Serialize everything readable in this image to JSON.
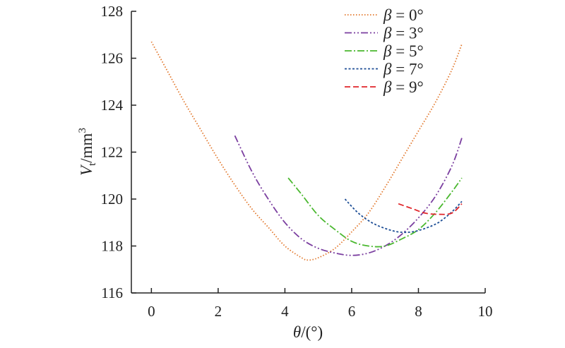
{
  "chart_data": {
    "type": "line",
    "title": "",
    "xlabel": "θ/(°)",
    "xlabel_var": "θ",
    "xlabel_unit": "/(°)",
    "ylabel": "Vt/mm3",
    "ylabel_var": "V",
    "ylabel_sub": "t",
    "ylabel_unit": "/mm",
    "ylabel_sup": "3",
    "xlim": [
      -0.6,
      10
    ],
    "ylim": [
      116,
      128
    ],
    "xticks": [
      0,
      2,
      4,
      6,
      8,
      10
    ],
    "yticks": [
      116,
      118,
      120,
      122,
      124,
      126,
      128
    ],
    "xtick_labels": [
      "0",
      "2",
      "4",
      "6",
      "8",
      "10"
    ],
    "ytick_labels": [
      "116",
      "118",
      "120",
      "122",
      "124",
      "126",
      "128"
    ],
    "grid": false,
    "legend_position": "top-right",
    "series": [
      {
        "name": "β = 0°",
        "legend_var": "β",
        "legend_rest": " = 0°",
        "color": "#e2772b",
        "dash": "1.5,2.5",
        "x": [
          0,
          0.5,
          1,
          1.5,
          2,
          2.5,
          3,
          3.5,
          4,
          4.5,
          4.7,
          5,
          5.5,
          6,
          6.5,
          7,
          7.5,
          8,
          8.5,
          9,
          9.3
        ],
        "y": [
          126.7,
          125.4,
          124.1,
          122.9,
          121.7,
          120.6,
          119.6,
          118.8,
          118.0,
          117.5,
          117.4,
          117.5,
          117.9,
          118.6,
          119.4,
          120.5,
          121.7,
          122.9,
          124.1,
          125.5,
          126.6
        ]
      },
      {
        "name": "β = 3°",
        "legend_var": "β",
        "legend_rest": " = 3°",
        "color": "#7b3fa0",
        "dash": "10,3,2,3,2,3",
        "x": [
          2.5,
          3,
          3.5,
          4,
          4.5,
          5,
          5.5,
          6,
          6.5,
          7,
          7.5,
          8,
          8.5,
          9,
          9.3
        ],
        "y": [
          122.7,
          121.2,
          120.0,
          119.0,
          118.3,
          117.9,
          117.7,
          117.6,
          117.7,
          118.0,
          118.5,
          119.2,
          120.1,
          121.4,
          122.6
        ]
      },
      {
        "name": "β = 5°",
        "legend_var": "β",
        "legend_rest": " = 5°",
        "color": "#4ab82f",
        "dash": "10,3,2,3",
        "x": [
          4.1,
          4.5,
          5,
          5.5,
          6,
          6.5,
          7,
          7.5,
          8,
          8.5,
          9,
          9.3
        ],
        "y": [
          120.9,
          120.2,
          119.3,
          118.7,
          118.2,
          118.0,
          118.0,
          118.3,
          118.7,
          119.4,
          120.3,
          120.9
        ]
      },
      {
        "name": "β = 7°",
        "legend_var": "β",
        "legend_rest": " = 7°",
        "color": "#1f4f96",
        "dash": "3,2.5",
        "x": [
          5.8,
          6.2,
          6.6,
          7,
          7.4,
          7.8,
          8.2,
          8.6,
          9,
          9.3
        ],
        "y": [
          120.0,
          119.4,
          119.0,
          118.75,
          118.6,
          118.6,
          118.75,
          119.0,
          119.45,
          119.9
        ]
      },
      {
        "name": "β = 9°",
        "legend_var": "β",
        "legend_rest": " = 9°",
        "color": "#e0262b",
        "dash": "8,4",
        "x": [
          7.4,
          7.8,
          8.2,
          8.6,
          9,
          9.3
        ],
        "y": [
          119.8,
          119.6,
          119.4,
          119.35,
          119.4,
          119.8
        ]
      }
    ]
  }
}
